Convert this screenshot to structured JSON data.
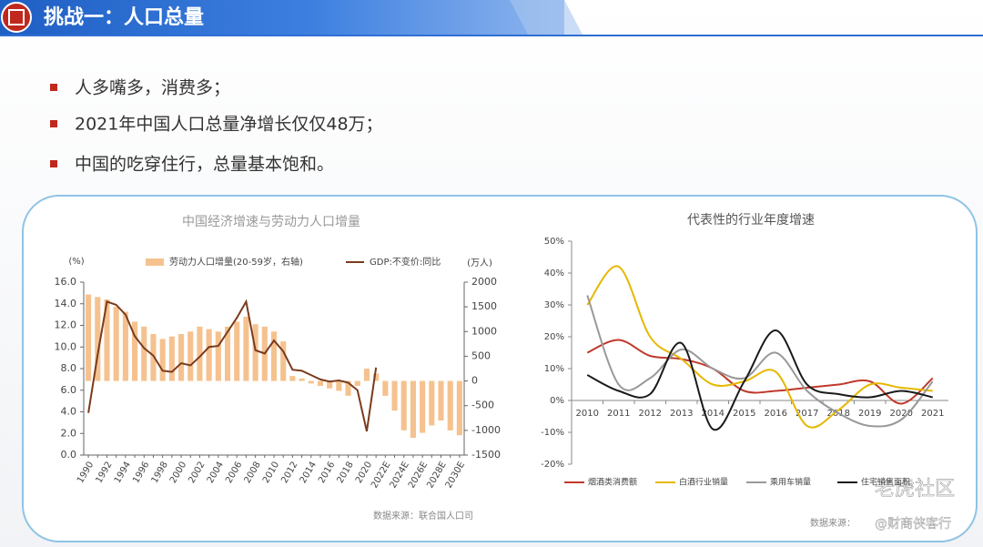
{
  "header": {
    "title": "挑战一：人口总量"
  },
  "bullets": [
    "人多嘴多，消费多；",
    "2021年中国人口总量净增长仅仅48万；",
    "中国的吃穿住行，总量基本饱和。"
  ],
  "watermarks": [
    "老虎社区",
    "@财商侠客行"
  ],
  "chart_data": [
    {
      "type": "combo",
      "title": "中国经济增速与劳动力人口增量",
      "ylabel": "(%)",
      "y2label": "(万人)",
      "source": "数据来源：联合国人口司",
      "legend": "top",
      "grid": false,
      "categories": [
        "1990",
        null,
        "1992",
        null,
        "1994",
        null,
        "1996",
        null,
        "1998",
        null,
        "2000",
        null,
        "2002",
        null,
        "2004",
        null,
        "2006",
        null,
        "2008",
        null,
        "2010",
        null,
        "2012",
        null,
        "2014",
        null,
        "2016",
        null,
        "2018",
        null,
        "2020",
        null,
        "2022E",
        null,
        "2024E",
        null,
        "2026E",
        null,
        "2028E",
        null,
        "2030E"
      ],
      "ylim": [
        0,
        16
      ],
      "yticks": [
        {
          "value": 0,
          "label": "0.0"
        },
        {
          "value": 2,
          "label": "2.0"
        },
        {
          "value": 4,
          "label": "4.0"
        },
        {
          "value": 6,
          "label": "6.0"
        },
        {
          "value": 8,
          "label": "8.0"
        },
        {
          "value": 10,
          "label": "10.0"
        },
        {
          "value": 12,
          "label": "12.0"
        },
        {
          "value": 14,
          "label": "14.0"
        },
        {
          "value": 16,
          "label": "16.0"
        }
      ],
      "y2lim": [
        -1500,
        2000
      ],
      "y2ticks": [
        -1500,
        -1000,
        -500,
        0,
        500,
        1000,
        1500,
        2000
      ],
      "series": [
        {
          "name": "劳动力人口增量(20-59岁，右轴)",
          "type": "bar",
          "axis": "y2",
          "color": "#f5c28f",
          "values": [
            1750,
            1700,
            1650,
            1500,
            1400,
            1200,
            1100,
            950,
            850,
            900,
            950,
            1000,
            1100,
            1050,
            1000,
            1100,
            1200,
            1300,
            1150,
            1100,
            1000,
            800,
            100,
            50,
            -50,
            -100,
            -150,
            -200,
            -300,
            -100,
            250,
            150,
            -300,
            -600,
            -1000,
            -1150,
            -1050,
            -900,
            -800,
            -1000,
            -1100
          ]
        },
        {
          "name": "GDP:不变价:同比",
          "type": "line",
          "color": "#7a3b1d",
          "values": [
            3.9,
            9.3,
            14.2,
            13.9,
            13.0,
            11.0,
            9.9,
            9.2,
            7.8,
            7.7,
            8.5,
            8.3,
            9.1,
            10.0,
            10.1,
            11.4,
            12.7,
            14.2,
            9.7,
            9.4,
            10.6,
            9.6,
            7.9,
            7.8,
            7.4,
            7.0,
            6.8,
            6.9,
            6.7,
            6.0,
            2.2,
            8.1,
            null,
            null,
            null,
            null,
            null,
            null,
            null,
            null,
            null
          ]
        }
      ]
    },
    {
      "type": "line",
      "title": "代表性的行业年度增速",
      "source": "数据来源：",
      "legend": "bottom",
      "grid": false,
      "smooth": true,
      "categories": [
        "2010",
        "2011",
        "2012",
        "2013",
        "2014",
        "2015",
        "2016",
        "2017",
        "2018",
        "2019",
        "2020",
        "2021"
      ],
      "ylim": [
        -20,
        50
      ],
      "yticks": [
        {
          "value": -20,
          "label": "-20%"
        },
        {
          "value": -10,
          "label": "-10%"
        },
        {
          "value": 0,
          "label": "0%"
        },
        {
          "value": 10,
          "label": "10%"
        },
        {
          "value": 20,
          "label": "20%"
        },
        {
          "value": 30,
          "label": "30%"
        },
        {
          "value": 40,
          "label": "40%"
        },
        {
          "value": 50,
          "label": "50%"
        }
      ],
      "series": [
        {
          "name": "烟酒类消费额",
          "color": "#c0392b",
          "values": [
            15,
            19,
            14,
            13,
            10,
            3,
            3,
            4,
            5,
            6,
            -1,
            7
          ]
        },
        {
          "name": "白酒行业销量",
          "color": "#e6b800",
          "values": [
            30,
            42,
            20,
            13,
            5,
            6,
            9,
            -8,
            -3,
            5,
            4,
            3
          ]
        },
        {
          "name": "乘用车销量",
          "color": "#999999",
          "values": [
            33,
            5,
            7,
            16,
            10,
            7,
            15,
            3,
            -4,
            -8,
            -6,
            6
          ]
        },
        {
          "name": "住宅销售面积",
          "color": "#1a1a1a",
          "values": [
            8,
            3,
            2,
            18,
            -9,
            6,
            22,
            5,
            2,
            1,
            3,
            1
          ]
        }
      ]
    }
  ]
}
